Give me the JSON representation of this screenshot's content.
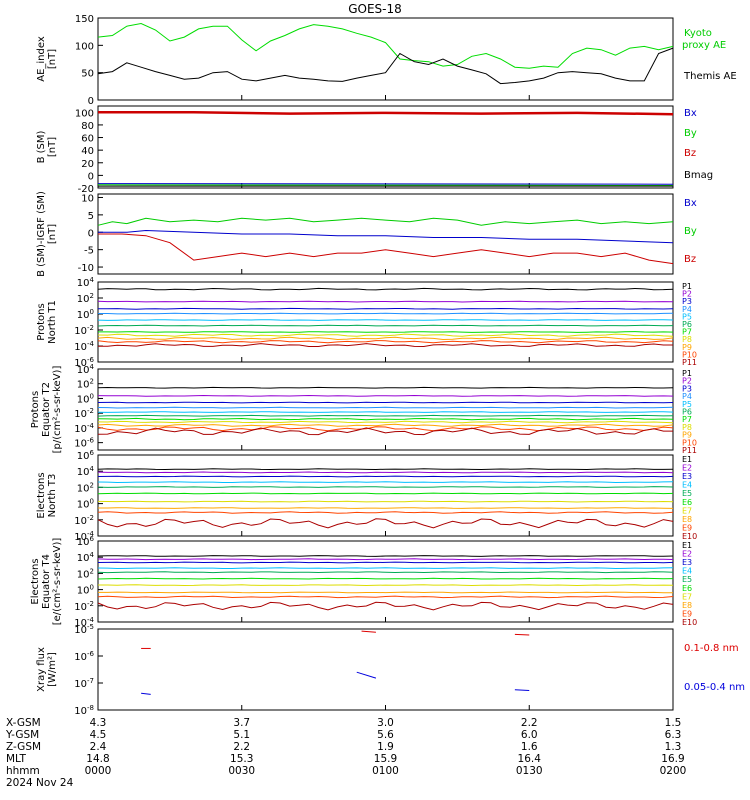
{
  "title": "GOES-18",
  "chart_data": [
    {
      "type": "line",
      "ylabel": [
        "AE_index",
        "[nT]"
      ],
      "ylim": [
        0,
        150
      ],
      "yticks": [
        "0",
        "50",
        "100",
        "150"
      ],
      "series": [
        {
          "name": "Kyoto proxy AE",
          "color": "#00dd00",
          "x": [
            0,
            3,
            6,
            9,
            12,
            15,
            18,
            21,
            24,
            27,
            30,
            33,
            36,
            39,
            42,
            45,
            48,
            51,
            54,
            57,
            60,
            63,
            66,
            69,
            72,
            75,
            78,
            81,
            84,
            87,
            90,
            93,
            96,
            99,
            102,
            105,
            108,
            111,
            114,
            117,
            120
          ],
          "y": [
            115,
            118,
            135,
            140,
            128,
            108,
            115,
            130,
            135,
            135,
            110,
            90,
            108,
            118,
            130,
            138,
            135,
            130,
            122,
            115,
            105,
            75,
            72,
            70,
            62,
            65,
            80,
            85,
            75,
            60,
            58,
            62,
            60,
            85,
            95,
            92,
            82,
            95,
            98,
            92,
            98
          ]
        },
        {
          "name": "Themis AE",
          "color": "#000000",
          "x": [
            0,
            3,
            6,
            9,
            12,
            15,
            18,
            21,
            24,
            27,
            30,
            33,
            36,
            39,
            42,
            45,
            48,
            51,
            54,
            57,
            60,
            63,
            66,
            69,
            72,
            75,
            78,
            81,
            84,
            87,
            90,
            93,
            96,
            99,
            102,
            105,
            108,
            111,
            114,
            117,
            120
          ],
          "y": [
            48,
            52,
            68,
            60,
            52,
            45,
            38,
            40,
            50,
            52,
            38,
            35,
            40,
            45,
            40,
            38,
            35,
            34,
            40,
            45,
            50,
            85,
            70,
            65,
            75,
            62,
            55,
            48,
            30,
            32,
            35,
            40,
            50,
            52,
            50,
            48,
            40,
            35,
            35,
            85,
            95
          ]
        }
      ],
      "legend": [
        "Kyoto proxy AE",
        "Themis AE"
      ],
      "legend_labels": [
        "Kyoto",
        "proxy AE",
        "Themis AE"
      ]
    },
    {
      "type": "line",
      "ylabel": [
        "B (SM)",
        "[nT]"
      ],
      "ylim": [
        -20,
        110
      ],
      "yticks": [
        "-20",
        "0",
        "20",
        "40",
        "60",
        "80",
        "100"
      ],
      "series": [
        {
          "name": "Bx",
          "color": "#0000cc",
          "x": [
            0,
            120
          ],
          "y": [
            -13,
            -14
          ]
        },
        {
          "name": "By",
          "color": "#00cc00",
          "x": [
            0,
            120
          ],
          "y": [
            -15,
            -16
          ]
        },
        {
          "name": "Bz",
          "color": "#cc0000",
          "x": [
            0,
            20,
            40,
            60,
            80,
            100,
            120
          ],
          "y": [
            100,
            100,
            98,
            99,
            98,
            99,
            97
          ]
        },
        {
          "name": "Bmag",
          "color": "#000000",
          "x": [
            0,
            120
          ],
          "y": [
            -17,
            -17
          ]
        }
      ],
      "legend": [
        "Bx",
        "By",
        "Bz",
        "Bmag"
      ]
    },
    {
      "type": "line",
      "ylabel": [
        "B (SM)-IGRF (SM)",
        "[nT]"
      ],
      "ylim": [
        -12,
        11
      ],
      "yticks": [
        "-10",
        "-5",
        "0",
        "5",
        "10"
      ],
      "series": [
        {
          "name": "Bx",
          "color": "#0000cc",
          "x": [
            0,
            6,
            10,
            20,
            30,
            40,
            50,
            60,
            70,
            80,
            90,
            100,
            110,
            120
          ],
          "y": [
            0,
            0,
            0.5,
            0,
            -0.5,
            -0.5,
            -1,
            -1,
            -1.5,
            -1.5,
            -2,
            -2,
            -2.5,
            -3
          ]
        },
        {
          "name": "By",
          "color": "#00cc00",
          "x": [
            0,
            3,
            6,
            10,
            15,
            20,
            25,
            30,
            35,
            40,
            45,
            50,
            55,
            60,
            65,
            70,
            75,
            80,
            85,
            90,
            95,
            100,
            105,
            110,
            115,
            120
          ],
          "y": [
            2,
            3,
            2.5,
            4,
            3,
            3.5,
            3,
            4,
            3.5,
            4,
            3,
            3.5,
            4,
            3.5,
            3,
            4,
            3.5,
            2,
            3,
            2.5,
            3,
            3.5,
            2.5,
            3,
            2.5,
            3
          ]
        },
        {
          "name": "Bz",
          "color": "#cc0000",
          "x": [
            0,
            5,
            10,
            15,
            20,
            25,
            30,
            35,
            40,
            45,
            50,
            55,
            60,
            65,
            70,
            75,
            80,
            85,
            90,
            95,
            100,
            105,
            110,
            115,
            120
          ],
          "y": [
            -0.5,
            -0.5,
            -1,
            -3,
            -8,
            -7,
            -6,
            -7,
            -6,
            -7,
            -6,
            -6,
            -5,
            -6,
            -7,
            -6,
            -5,
            -6,
            -7,
            -6,
            -6,
            -7,
            -6,
            -8,
            -9
          ]
        }
      ],
      "legend": [
        "Bx",
        "By",
        "Bz"
      ]
    },
    {
      "type": "line",
      "log": true,
      "ylabel": [
        "Protons",
        "North T1"
      ],
      "ylim_exp": [
        -6,
        4
      ],
      "yticks": [
        "10^-6",
        "10^-4",
        "10^-2",
        "10^0",
        "10^2",
        "10^4"
      ],
      "series": [
        {
          "name": "P1",
          "color": "#000000",
          "flux": [
            3,
            3.2
          ]
        },
        {
          "name": "P2",
          "color": "#9400d3",
          "flux": [
            1.5,
            1.6
          ]
        },
        {
          "name": "P3",
          "color": "#0000cc",
          "flux": [
            0.6,
            0.7
          ]
        },
        {
          "name": "P4",
          "color": "#1e90ff",
          "flux": [
            0,
            0.1
          ]
        },
        {
          "name": "P5",
          "color": "#00bfff",
          "flux": [
            -0.8,
            -0.7
          ]
        },
        {
          "name": "P6",
          "color": "#00aa55",
          "flux": [
            -1.5,
            -1.4
          ]
        },
        {
          "name": "P7",
          "color": "#00dd00",
          "flux": [
            -2.3,
            -2.2
          ]
        },
        {
          "name": "P8",
          "color": "#dddd00",
          "flux": [
            -2.8,
            -2.5
          ]
        },
        {
          "name": "P9",
          "color": "#ffa500",
          "flux": [
            -3.2,
            -2.9
          ]
        },
        {
          "name": "P10",
          "color": "#ff4500",
          "flux": [
            -3.6,
            -3.3
          ]
        },
        {
          "name": "P11",
          "color": "#aa0000",
          "flux": [
            -4.1,
            -3.7
          ]
        }
      ],
      "legend": [
        "P1",
        "P2",
        "P3",
        "P4",
        "P5",
        "P6",
        "P7",
        "P8",
        "P9",
        "P10",
        "P11"
      ]
    },
    {
      "type": "line",
      "log": true,
      "ylabel": [
        "Protons",
        "Equator T2",
        "[p/(cm²-s-sr-keV)]"
      ],
      "ylim_exp": [
        -7,
        4
      ],
      "yticks": [
        "10^-6",
        "10^-4",
        "10^-2",
        "10^0",
        "10^2",
        "10^4"
      ],
      "series": [
        {
          "name": "P1",
          "color": "#000000",
          "flux": [
            1.4,
            1.5
          ]
        },
        {
          "name": "P2",
          "color": "#9400d3",
          "flux": [
            0.3,
            0.4
          ]
        },
        {
          "name": "P3",
          "color": "#0000cc",
          "flux": [
            -0.6,
            -0.5
          ]
        },
        {
          "name": "P4",
          "color": "#1e90ff",
          "flux": [
            -1.3,
            -1.2
          ]
        },
        {
          "name": "P5",
          "color": "#00bfff",
          "flux": [
            -1.9,
            -1.8
          ]
        },
        {
          "name": "P6",
          "color": "#00aa55",
          "flux": [
            -2.4,
            -2.3
          ]
        },
        {
          "name": "P7",
          "color": "#00dd00",
          "flux": [
            -2.9,
            -2.7
          ]
        },
        {
          "name": "P8",
          "color": "#dddd00",
          "flux": [
            -3.3,
            -3.1
          ]
        },
        {
          "name": "P9",
          "color": "#ffa500",
          "flux": [
            -3.8,
            -3.5
          ]
        },
        {
          "name": "P10",
          "color": "#ff4500",
          "flux": [
            -4.4,
            -3.8
          ]
        },
        {
          "name": "P11",
          "color": "#aa0000",
          "flux": [
            -5,
            -4
          ]
        }
      ],
      "legend": [
        "P1",
        "P2",
        "P3",
        "P4",
        "P5",
        "P6",
        "P7",
        "P8",
        "P9",
        "P10",
        "P11"
      ]
    },
    {
      "type": "line",
      "log": true,
      "ylabel": [
        "Electrons",
        "North T3"
      ],
      "ylim_exp": [
        -4,
        6
      ],
      "yticks": [
        "10^-4",
        "10^-2",
        "10^0",
        "10^2",
        "10^4",
        "10^6"
      ],
      "series": [
        {
          "name": "E1",
          "color": "#000000",
          "flux": [
            4.2,
            4.3
          ]
        },
        {
          "name": "E2",
          "color": "#9400d3",
          "flux": [
            3.8,
            3.9
          ]
        },
        {
          "name": "E3",
          "color": "#0000cc",
          "flux": [
            3.3,
            3.4
          ]
        },
        {
          "name": "E4",
          "color": "#00bfff",
          "flux": [
            2.6,
            2.7
          ]
        },
        {
          "name": "E5",
          "color": "#00aa55",
          "flux": [
            2.0,
            2.1
          ]
        },
        {
          "name": "E6",
          "color": "#00dd00",
          "flux": [
            1.2,
            1.3
          ]
        },
        {
          "name": "E7",
          "color": "#dddd00",
          "flux": [
            0.2,
            0.3
          ]
        },
        {
          "name": "E8",
          "color": "#ffa500",
          "flux": [
            -0.6,
            -0.5
          ]
        },
        {
          "name": "E9",
          "color": "#ff4500",
          "flux": [
            -1.2,
            -1.0
          ]
        },
        {
          "name": "E10",
          "color": "#aa0000",
          "flux": [
            -3.0,
            -1.8
          ]
        }
      ],
      "legend": [
        "E1",
        "E2",
        "E3",
        "E4",
        "E5",
        "E6",
        "E7",
        "E8",
        "E9",
        "E10"
      ]
    },
    {
      "type": "line",
      "log": true,
      "ylabel": [
        "Electrons",
        "Equator T4",
        "[e/(cm²-s-sr-keV)]"
      ],
      "ylim_exp": [
        -4,
        6
      ],
      "yticks": [
        "10^-4",
        "10^-2",
        "10^0",
        "10^2",
        "10^4",
        "10^6"
      ],
      "series": [
        {
          "name": "E1",
          "color": "#000000",
          "flux": [
            4.1,
            4.2
          ]
        },
        {
          "name": "E2",
          "color": "#9400d3",
          "flux": [
            3.7,
            3.8
          ]
        },
        {
          "name": "E3",
          "color": "#0000cc",
          "flux": [
            3.3,
            3.4
          ]
        },
        {
          "name": "E4",
          "color": "#00bfff",
          "flux": [
            2.6,
            2.7
          ]
        },
        {
          "name": "E5",
          "color": "#00aa55",
          "flux": [
            2.1,
            2.2
          ]
        },
        {
          "name": "E6",
          "color": "#00dd00",
          "flux": [
            1.3,
            1.4
          ]
        },
        {
          "name": "E7",
          "color": "#dddd00",
          "flux": [
            0.5,
            0.6
          ]
        },
        {
          "name": "E8",
          "color": "#ffa500",
          "flux": [
            -0.4,
            -0.3
          ]
        },
        {
          "name": "E9",
          "color": "#ff4500",
          "flux": [
            -1.0,
            -0.8
          ]
        },
        {
          "name": "E10",
          "color": "#aa0000",
          "flux": [
            -2.5,
            -1.5
          ]
        }
      ],
      "legend": [
        "E1",
        "E2",
        "E3",
        "E4",
        "E5",
        "E6",
        "E7",
        "E8",
        "E9",
        "E10"
      ]
    },
    {
      "type": "line",
      "log": true,
      "ylabel": [
        "Xray flux",
        "[W/m²]"
      ],
      "ylim_exp": [
        -8,
        -5
      ],
      "yticks": [
        "10^-8",
        "10^-7",
        "10^-6",
        "10^-5"
      ],
      "series": [
        {
          "name": "0.1-0.8 nm",
          "color": "#dd0000",
          "segments": [
            [
              [
                9,
                -5.72
              ],
              [
                11,
                -5.72
              ]
            ],
            [
              [
                55,
                -5.08
              ],
              [
                58,
                -5.12
              ]
            ],
            [
              [
                87,
                -5.2
              ],
              [
                90,
                -5.22
              ]
            ]
          ]
        },
        {
          "name": "0.05-0.4 nm",
          "color": "#0000dd",
          "segments": [
            [
              [
                9,
                -7.38
              ],
              [
                11,
                -7.42
              ]
            ],
            [
              [
                54,
                -6.6
              ],
              [
                58,
                -6.82
              ]
            ],
            [
              [
                87,
                -7.25
              ],
              [
                90,
                -7.28
              ]
            ]
          ]
        }
      ],
      "legend": [
        "0.1-0.8 nm",
        "0.05-0.4 nm"
      ]
    }
  ],
  "ephemeris": {
    "labels": [
      "X-GSM",
      "Y-GSM",
      "Z-GSM",
      "MLT",
      "hhmm",
      "2024 Nov 24"
    ],
    "columns": [
      [
        "4.3",
        "4.5",
        "2.4",
        "14.8",
        "0000"
      ],
      [
        "3.7",
        "5.1",
        "2.2",
        "15.3",
        "0030"
      ],
      [
        "3.0",
        "5.6",
        "1.9",
        "15.9",
        "0100"
      ],
      [
        "2.2",
        "6.0",
        "1.6",
        "16.4",
        "0130"
      ],
      [
        "1.5",
        "6.3",
        "1.3",
        "16.9",
        "0200"
      ]
    ]
  }
}
